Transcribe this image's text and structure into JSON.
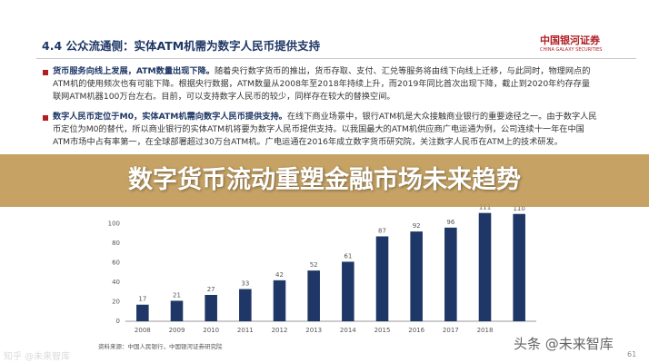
{
  "header": {
    "title": "4.4 公众流通侧：实体ATM机需为数字人民币提供支持",
    "logo": "中国银河证券",
    "logo_en": "CHINA GALAXY SECURITIES"
  },
  "bullets": [
    {
      "bold": "货币服务向线上发展，ATM数量出现下降。",
      "text": "随着央行数字货币的推出，货币存取、支付、汇兑等服务将由线下向线上迁移，与此同时，物理网点的ATM机的使用频次也有可能下降。根据央行数据，ATM数量从2008年至2018年持续上升，而2019年同比首次出现下降，截止到2020年约存存量联网ATM机器100万台左右。目前，可以支持数字人民币的较少，同样存在较大的替换空间。"
    },
    {
      "bold": "数字人民币定位于M0，实体ATM机需向数字人民币提供支持。",
      "text": "在线下商业场景中，银行ATM机是大众接触商业银行的重要途径之一。由于数字人民币定位为M0的替代，所以商业银行的实体ATM机将要为数字人民币提供支持。以我国最大的ATM机供应商广电运通为例，公司连续十一年在中国ATM市场中占有率第一，在全球部署超过30万台ATM机。广电运通在2016年成立数字货币研究院，关注数字人民币在ATM上的技术研发。"
    }
  ],
  "banner": "数字货币流动重塑金融市场未来趋势",
  "chart_data": {
    "type": "bar",
    "categories": [
      "2008",
      "2009",
      "2010",
      "2011",
      "2012",
      "2013",
      "2014",
      "2015",
      "2016",
      "2017",
      "2018",
      null
    ],
    "values": [
      17,
      21,
      27,
      33,
      42,
      52,
      61,
      87,
      92,
      96,
      111,
      110
    ],
    "color": "#1f3766",
    "ylim": [
      0,
      120
    ],
    "yticks": [
      0,
      20,
      40,
      60,
      80,
      100
    ],
    "grid": false
  },
  "source": "资料来源：中国人民银行，中国银河证券研究院",
  "page_number": "61",
  "watermarks": [
    "知乎 @未来智库",
    "头条 @未来智库"
  ]
}
